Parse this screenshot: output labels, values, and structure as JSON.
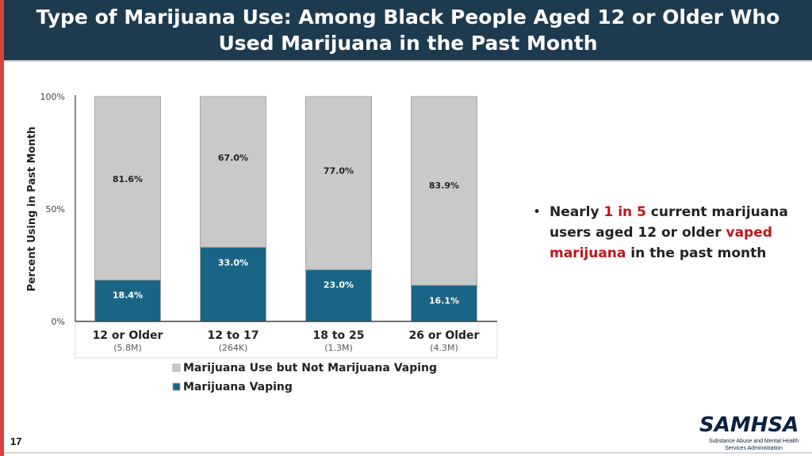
{
  "header": {
    "title_line1": "Type of Marijuana Use: Among Black People Aged 12 or Older Who",
    "title_line2": "Used Marijuana in the Past Month"
  },
  "chart_data": {
    "type": "bar",
    "stacked": true,
    "ylabel": "Percent Using in Past Month",
    "ylim": [
      0,
      100
    ],
    "yticks": [
      0,
      50,
      100
    ],
    "ytick_labels": [
      "0%",
      "50%",
      "100%"
    ],
    "categories": [
      "12 or Older",
      "12 to 17",
      "18 to 25",
      "26 or Older"
    ],
    "category_sublabels": [
      "(5.8M)",
      "(264K)",
      "(1.3M)",
      "(4.3M)"
    ],
    "series": [
      {
        "name": "Marijuana Vaping",
        "values": [
          18.4,
          33.0,
          23.0,
          16.1
        ],
        "labels": [
          "18.4%",
          "33.0%",
          "23.0%",
          "16.1%"
        ],
        "color": "#1a6585"
      },
      {
        "name": "Marijuana Use but Not Marijuana Vaping",
        "values": [
          81.6,
          67.0,
          77.0,
          83.9
        ],
        "labels": [
          "81.6%",
          "67.0%",
          "77.0%",
          "83.9%"
        ],
        "color": "#c9c9c9"
      }
    ],
    "legend_order": [
      "Marijuana Use but Not Marijuana Vaping",
      "Marijuana Vaping"
    ],
    "legend_position": "bottom",
    "grid": false
  },
  "bullet": {
    "marker": "•",
    "part1": "Nearly ",
    "highlight1": "1 in 5",
    "part2": " current marijuana users aged 12 or older ",
    "highlight2": "vaped marijuana",
    "part3": " in the past month"
  },
  "page_number": "17",
  "logo": {
    "name": "SAMHSA",
    "subtitle": "Substance Abuse and Mental Health Services Administration"
  },
  "colors": {
    "header_bg": "#1e3a4f",
    "accent_red": "#c0141b",
    "vaping": "#1a6585",
    "non_vaping": "#c9c9c9"
  }
}
